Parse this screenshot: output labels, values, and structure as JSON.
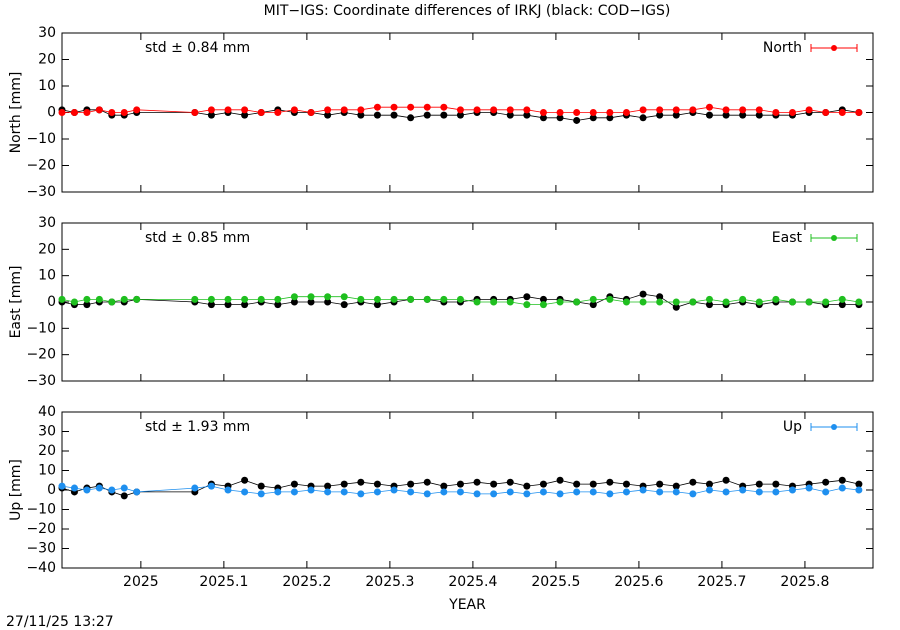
{
  "title": "MIT−IGS: Coordinate differences of IRKJ (black: COD−IGS)",
  "timestamp": "27/11/25 13:27",
  "chart_data": [
    {
      "type": "scatter",
      "ylabel": "North [mm]",
      "annotation": "std ± 0.84 mm",
      "xlim": [
        2024.905,
        2025.882
      ],
      "xticks": [
        2025,
        2025.1,
        2025.2,
        2025.3,
        2025.4,
        2025.5,
        2025.6,
        2025.7,
        2025.8
      ],
      "ylim": [
        -30,
        30
      ],
      "yticks": [
        {
          "value": -30,
          "label": "−30"
        },
        {
          "value": -20,
          "label": "−20"
        },
        {
          "value": -10,
          "label": "−10"
        },
        0,
        10,
        20,
        30
      ],
      "x": [
        2024.905,
        2024.92,
        2024.935,
        2024.95,
        2024.965,
        2024.98,
        2024.995,
        2025.065,
        2025.085,
        2025.105,
        2025.125,
        2025.145,
        2025.165,
        2025.185,
        2025.205,
        2025.225,
        2025.245,
        2025.265,
        2025.285,
        2025.305,
        2025.325,
        2025.345,
        2025.365,
        2025.385,
        2025.405,
        2025.425,
        2025.445,
        2025.465,
        2025.485,
        2025.505,
        2025.525,
        2025.545,
        2025.565,
        2025.585,
        2025.605,
        2025.625,
        2025.645,
        2025.665,
        2025.685,
        2025.705,
        2025.725,
        2025.745,
        2025.765,
        2025.785,
        2025.805,
        2025.825,
        2025.845,
        2025.865
      ],
      "series": [
        {
          "color": "#000000",
          "values": [
            1,
            0,
            1,
            1,
            -1,
            -1,
            0,
            0,
            -1,
            0,
            -1,
            0,
            1,
            0,
            0,
            -1,
            0,
            -1,
            -1,
            -1,
            -2,
            -1,
            -1,
            -1,
            0,
            0,
            -1,
            -1,
            -2,
            -2,
            -3,
            -2,
            -2,
            -1,
            -2,
            -1,
            -1,
            0,
            -1,
            -1,
            -1,
            -1,
            -1,
            -1,
            0,
            0,
            1,
            0
          ]
        },
        {
          "name": "North",
          "color": "#ff0000",
          "values": [
            0,
            0,
            0,
            1,
            0,
            0,
            1,
            0,
            1,
            1,
            1,
            0,
            0,
            1,
            0,
            1,
            1,
            1,
            2,
            2,
            2,
            2,
            2,
            1,
            1,
            1,
            1,
            1,
            0,
            0,
            0,
            0,
            0,
            0,
            1,
            1,
            1,
            1,
            2,
            1,
            1,
            1,
            0,
            0,
            1,
            0,
            0,
            0
          ]
        }
      ]
    },
    {
      "type": "scatter",
      "ylabel": "East [mm]",
      "annotation": "std ± 0.85 mm",
      "xlim": [
        2024.905,
        2025.882
      ],
      "xticks": [
        2025,
        2025.1,
        2025.2,
        2025.3,
        2025.4,
        2025.5,
        2025.6,
        2025.7,
        2025.8
      ],
      "ylim": [
        -30,
        30
      ],
      "yticks": [
        {
          "value": -30,
          "label": "−30"
        },
        {
          "value": -20,
          "label": "−20"
        },
        {
          "value": -10,
          "label": "−10"
        },
        0,
        10,
        20,
        30
      ],
      "x": [
        2024.905,
        2024.92,
        2024.935,
        2024.95,
        2024.965,
        2024.98,
        2024.995,
        2025.065,
        2025.085,
        2025.105,
        2025.125,
        2025.145,
        2025.165,
        2025.185,
        2025.205,
        2025.225,
        2025.245,
        2025.265,
        2025.285,
        2025.305,
        2025.325,
        2025.345,
        2025.365,
        2025.385,
        2025.405,
        2025.425,
        2025.445,
        2025.465,
        2025.485,
        2025.505,
        2025.525,
        2025.545,
        2025.565,
        2025.585,
        2025.605,
        2025.625,
        2025.645,
        2025.665,
        2025.685,
        2025.705,
        2025.725,
        2025.745,
        2025.765,
        2025.785,
        2025.805,
        2025.825,
        2025.845,
        2025.865
      ],
      "series": [
        {
          "color": "#000000",
          "values": [
            0,
            -1,
            -1,
            0,
            0,
            0,
            1,
            0,
            -1,
            -1,
            -1,
            0,
            -1,
            0,
            0,
            0,
            -1,
            0,
            -1,
            0,
            1,
            1,
            0,
            0,
            1,
            1,
            1,
            2,
            1,
            1,
            0,
            -1,
            2,
            1,
            3,
            2,
            -2,
            0,
            -1,
            -1,
            0,
            -1,
            0,
            0,
            0,
            -1,
            -1,
            -1
          ]
        },
        {
          "name": "East",
          "color": "#1fbf1f",
          "values": [
            1,
            0,
            1,
            1,
            0,
            1,
            1,
            1,
            1,
            1,
            1,
            1,
            1,
            2,
            2,
            2,
            2,
            1,
            1,
            1,
            1,
            1,
            1,
            1,
            0,
            0,
            0,
            -1,
            -1,
            0,
            0,
            1,
            1,
            0,
            0,
            0,
            0,
            0,
            1,
            0,
            1,
            0,
            1,
            0,
            0,
            0,
            1,
            0
          ]
        }
      ]
    },
    {
      "type": "scatter",
      "ylabel": "Up [mm]",
      "xlabel": "YEAR",
      "annotation": "std ± 1.93 mm",
      "xlim": [
        2024.905,
        2025.882
      ],
      "xticks": [
        2025,
        2025.1,
        2025.2,
        2025.3,
        2025.4,
        2025.5,
        2025.6,
        2025.7,
        2025.8
      ],
      "ylim": [
        -40,
        40
      ],
      "yticks": [
        {
          "value": -40,
          "label": "−40"
        },
        {
          "value": -30,
          "label": "−30"
        },
        {
          "value": -20,
          "label": "−20"
        },
        {
          "value": -10,
          "label": "−10"
        },
        0,
        10,
        20,
        30,
        40
      ],
      "x": [
        2024.905,
        2024.92,
        2024.935,
        2024.95,
        2024.965,
        2024.98,
        2024.995,
        2025.065,
        2025.085,
        2025.105,
        2025.125,
        2025.145,
        2025.165,
        2025.185,
        2025.205,
        2025.225,
        2025.245,
        2025.265,
        2025.285,
        2025.305,
        2025.325,
        2025.345,
        2025.365,
        2025.385,
        2025.405,
        2025.425,
        2025.445,
        2025.465,
        2025.485,
        2025.505,
        2025.525,
        2025.545,
        2025.565,
        2025.585,
        2025.605,
        2025.625,
        2025.645,
        2025.665,
        2025.685,
        2025.705,
        2025.725,
        2025.745,
        2025.765,
        2025.785,
        2025.805,
        2025.825,
        2025.845,
        2025.865
      ],
      "series": [
        {
          "color": "#000000",
          "values": [
            1,
            -1,
            1,
            2,
            -1,
            -3,
            -1,
            -1,
            3,
            2,
            5,
            2,
            1,
            3,
            2,
            2,
            3,
            4,
            3,
            2,
            3,
            4,
            2,
            3,
            4,
            3,
            4,
            2,
            3,
            5,
            3,
            3,
            4,
            3,
            2,
            3,
            2,
            4,
            3,
            5,
            2,
            3,
            3,
            2,
            3,
            4,
            5,
            3
          ]
        },
        {
          "name": "Up",
          "color": "#1e8fef",
          "values": [
            2,
            1,
            0,
            1,
            0,
            1,
            -1,
            1,
            2,
            0,
            -1,
            -2,
            -1,
            -1,
            0,
            -1,
            -1,
            -2,
            -1,
            0,
            -1,
            -2,
            -1,
            -1,
            -2,
            -2,
            -1,
            -2,
            -1,
            -2,
            -1,
            -1,
            -2,
            -1,
            0,
            -1,
            -1,
            -2,
            0,
            -1,
            0,
            -1,
            -1,
            0,
            1,
            -1,
            1,
            0
          ]
        }
      ]
    }
  ]
}
